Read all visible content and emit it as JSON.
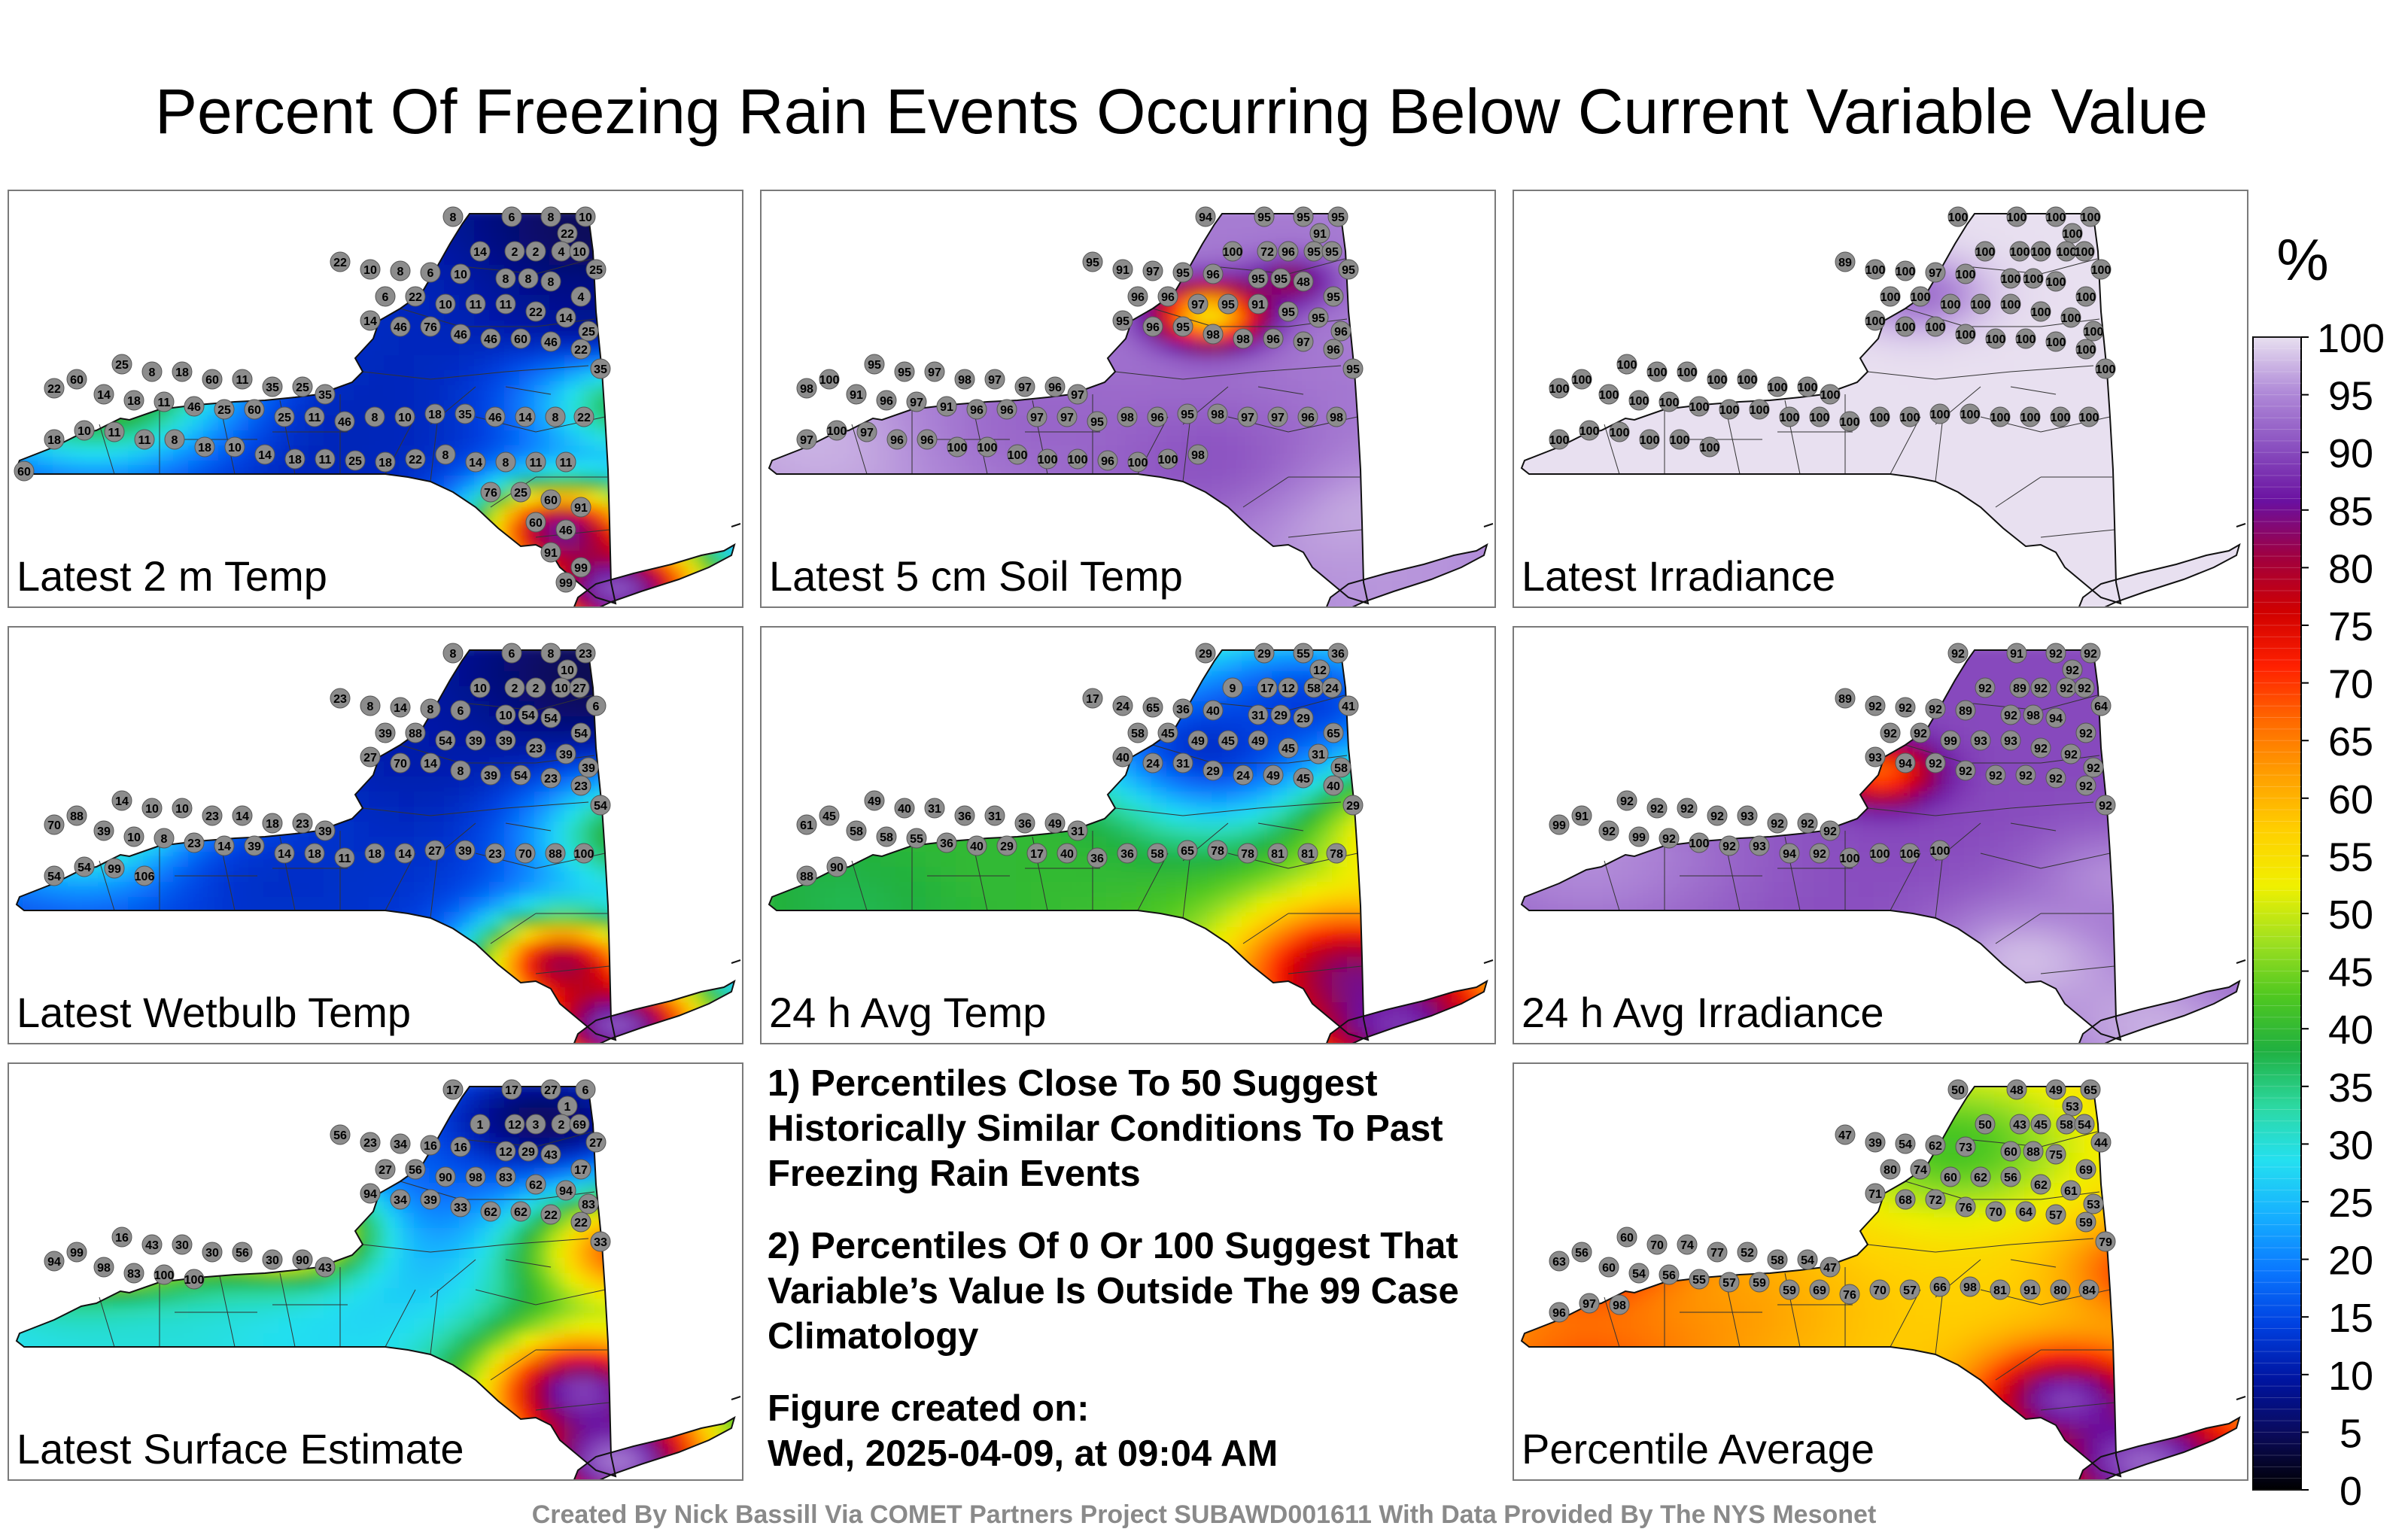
{
  "title": "Percent Of Freezing Rain Events Occurring Below Current Variable Value",
  "panels": [
    {
      "label": "Latest 2 m Temp",
      "field": {
        "base": 12,
        "blobs": [
          [
            0.77,
            0.14,
            0.16,
            2
          ],
          [
            0.5,
            0.3,
            0.18,
            12
          ],
          [
            0.32,
            0.55,
            0.14,
            10
          ],
          [
            0.12,
            0.5,
            0.12,
            45
          ],
          [
            0.18,
            0.34,
            0.1,
            50
          ],
          [
            0.75,
            0.81,
            0.08,
            90
          ],
          [
            0.86,
            0.5,
            0.1,
            45
          ],
          [
            0.83,
            0.96,
            0.1,
            99
          ],
          [
            0.8,
            0.3,
            0.09,
            8
          ]
        ]
      },
      "stations": [
        8,
        6,
        8,
        10,
        22,
        14,
        2,
        2,
        4,
        10,
        25,
        22,
        10,
        8,
        6,
        10,
        8,
        8,
        8,
        4,
        6,
        22,
        10,
        11,
        11,
        22,
        14,
        25,
        14,
        46,
        76,
        46,
        46,
        60,
        46,
        22,
        35,
        25,
        8,
        18,
        60,
        11,
        35,
        25,
        35,
        60,
        22,
        14,
        18,
        11,
        46,
        25,
        60,
        25,
        11,
        46,
        8,
        10,
        18,
        35,
        46,
        14,
        8,
        22,
        18,
        10,
        11,
        11,
        8,
        18,
        10,
        14,
        18,
        11,
        25,
        18,
        22,
        8,
        14,
        8,
        11,
        11,
        60,
        76,
        25,
        60,
        91,
        60,
        46,
        91,
        99,
        99
      ]
    },
    {
      "label": "Latest 5 cm Soil Temp",
      "field": {
        "base": 94,
        "blobs": [
          [
            0.61,
            0.3,
            0.05,
            48
          ],
          [
            0.72,
            0.22,
            0.04,
            80
          ],
          [
            0.1,
            0.6,
            0.15,
            98
          ],
          [
            0.8,
            0.78,
            0.1,
            99
          ],
          [
            0.6,
            0.65,
            0.12,
            90
          ],
          [
            0.38,
            0.55,
            0.12,
            92
          ],
          [
            0.86,
            0.96,
            0.15,
            96
          ]
        ]
      },
      "stations": [
        94,
        95,
        95,
        95,
        91,
        100,
        72,
        96,
        95,
        95,
        95,
        95,
        91,
        97,
        95,
        96,
        95,
        95,
        48,
        95,
        96,
        96,
        97,
        95,
        91,
        95,
        95,
        96,
        95,
        96,
        95,
        98,
        98,
        96,
        97,
        96,
        95,
        95,
        95,
        97,
        98,
        97,
        97,
        96,
        97,
        100,
        98,
        91,
        96,
        97,
        91,
        96,
        96,
        97,
        97,
        95,
        98,
        96,
        95,
        98,
        97,
        97,
        96,
        98,
        97,
        100,
        97,
        96,
        96,
        100,
        100,
        100,
        100,
        100,
        96,
        100,
        100,
        98
      ]
    },
    {
      "label": "Latest Irradiance",
      "field": {
        "base": 100,
        "blobs": [
          [
            0.55,
            0.25,
            0.06,
            92
          ]
        ]
      },
      "stations": [
        100,
        100,
        100,
        100,
        100,
        100,
        100,
        100,
        100,
        100,
        100,
        89,
        100,
        100,
        97,
        100,
        100,
        100,
        100,
        100,
        100,
        100,
        100,
        100,
        100,
        100,
        100,
        100,
        100,
        100,
        100,
        100,
        100,
        100,
        100,
        100,
        100,
        100,
        100,
        100,
        100,
        100,
        100,
        100,
        100,
        100,
        100,
        100,
        100,
        100,
        100,
        100,
        100,
        100,
        100,
        100,
        100,
        100,
        100,
        100,
        100,
        100,
        100,
        100,
        100,
        100,
        100,
        100,
        100,
        100
      ]
    },
    {
      "label": "Latest Wetbulb Temp",
      "field": {
        "base": 14,
        "blobs": [
          [
            0.77,
            0.14,
            0.16,
            2
          ],
          [
            0.5,
            0.3,
            0.18,
            10
          ],
          [
            0.15,
            0.45,
            0.12,
            50
          ],
          [
            0.75,
            0.8,
            0.08,
            85
          ],
          [
            0.86,
            0.5,
            0.1,
            45
          ],
          [
            0.83,
            0.96,
            0.1,
            99
          ],
          [
            0.35,
            0.6,
            0.14,
            12
          ]
        ]
      },
      "stations": [
        8,
        6,
        8,
        23,
        10,
        10,
        2,
        2,
        10,
        27,
        6,
        23,
        8,
        14,
        8,
        6,
        10,
        54,
        54,
        54,
        39,
        88,
        54,
        39,
        39,
        23,
        39,
        39,
        27,
        70,
        14,
        8,
        39,
        54,
        23,
        23,
        54,
        14,
        10,
        10,
        23,
        14,
        18,
        23,
        39,
        88,
        70,
        39,
        10,
        8,
        23,
        14,
        39,
        14,
        18,
        11,
        18,
        14,
        27,
        39,
        23,
        70,
        88,
        100,
        54,
        54,
        99,
        106
      ]
    },
    {
      "label": "24 h Avg Temp",
      "field": {
        "base": 42,
        "blobs": [
          [
            0.6,
            0.3,
            0.14,
            8
          ],
          [
            0.75,
            0.18,
            0.12,
            12
          ],
          [
            0.8,
            0.82,
            0.12,
            85
          ],
          [
            0.9,
            0.5,
            0.1,
            62
          ],
          [
            0.15,
            0.65,
            0.14,
            36
          ],
          [
            0.35,
            0.55,
            0.14,
            40
          ],
          [
            0.87,
            0.96,
            0.1,
            92
          ]
        ]
      },
      "stations": [
        29,
        29,
        55,
        36,
        12,
        9,
        17,
        12,
        58,
        24,
        41,
        17,
        24,
        65,
        36,
        40,
        31,
        29,
        29,
        65,
        58,
        45,
        49,
        45,
        49,
        45,
        31,
        58,
        40,
        24,
        31,
        29,
        24,
        49,
        45,
        40,
        29,
        49,
        40,
        31,
        36,
        31,
        36,
        49,
        31,
        45,
        61,
        58,
        58,
        55,
        36,
        40,
        29,
        17,
        40,
        36,
        36,
        58,
        65,
        78,
        78,
        81,
        81,
        78,
        88,
        90
      ]
    },
    {
      "label": "24 h Avg Irradiance",
      "field": {
        "base": 90,
        "blobs": [
          [
            0.5,
            0.35,
            0.05,
            64
          ],
          [
            0.7,
            0.8,
            0.1,
            99
          ],
          [
            0.1,
            0.55,
            0.15,
            96
          ],
          [
            0.87,
            0.96,
            0.12,
            98
          ],
          [
            0.82,
            0.6,
            0.08,
            96
          ]
        ]
      },
      "stations": [
        92,
        91,
        92,
        92,
        92,
        92,
        89,
        92,
        92,
        92,
        64,
        89,
        92,
        92,
        92,
        89,
        92,
        98,
        94,
        92,
        92,
        92,
        99,
        93,
        93,
        92,
        92,
        92,
        93,
        94,
        92,
        92,
        92,
        92,
        92,
        92,
        92,
        92,
        92,
        92,
        92,
        93,
        92,
        92,
        92,
        91,
        99,
        92,
        99,
        92,
        100,
        92,
        93,
        94,
        92,
        100,
        100,
        106,
        100
      ]
    },
    {
      "label": "Latest Surface Estimate",
      "field": {
        "base": 28,
        "blobs": [
          [
            0.72,
            0.15,
            0.13,
            1
          ],
          [
            0.5,
            0.32,
            0.14,
            15
          ],
          [
            0.14,
            0.4,
            0.1,
            90
          ],
          [
            0.38,
            0.4,
            0.08,
            75
          ],
          [
            0.85,
            0.45,
            0.1,
            75
          ],
          [
            0.78,
            0.78,
            0.1,
            94
          ],
          [
            0.83,
            0.96,
            0.1,
            100
          ],
          [
            0.2,
            0.7,
            0.12,
            30
          ]
        ]
      },
      "stations": [
        17,
        17,
        27,
        6,
        1,
        1,
        12,
        3,
        2,
        69,
        27,
        56,
        23,
        34,
        16,
        16,
        12,
        29,
        43,
        17,
        27,
        56,
        90,
        98,
        83,
        62,
        94,
        83,
        94,
        34,
        39,
        33,
        62,
        62,
        22,
        22,
        33,
        16,
        43,
        30,
        30,
        56,
        30,
        90,
        43,
        99,
        94,
        98,
        83,
        100,
        100
      ]
    },
    {
      "label": "Percentile Average",
      "field": {
        "base": 57,
        "blobs": [
          [
            0.6,
            0.2,
            0.12,
            40
          ],
          [
            0.12,
            0.45,
            0.1,
            85
          ],
          [
            0.75,
            0.8,
            0.08,
            92
          ],
          [
            0.88,
            0.5,
            0.08,
            75
          ],
          [
            0.3,
            0.6,
            0.12,
            62
          ],
          [
            0.1,
            0.75,
            0.12,
            70
          ],
          [
            0.86,
            0.96,
            0.1,
            96
          ]
        ]
      },
      "stations": [
        50,
        48,
        49,
        65,
        53,
        50,
        43,
        45,
        58,
        54,
        44,
        47,
        39,
        54,
        62,
        73,
        60,
        88,
        75,
        69,
        80,
        74,
        60,
        62,
        56,
        62,
        61,
        53,
        71,
        68,
        72,
        76,
        70,
        64,
        57,
        59,
        79,
        60,
        70,
        74,
        77,
        52,
        58,
        54,
        47,
        56,
        63,
        60,
        54,
        56,
        55,
        57,
        59,
        59,
        69,
        76,
        70,
        57,
        66,
        98,
        81,
        91,
        80,
        84,
        96,
        97,
        98
      ]
    }
  ],
  "notes": [
    "1) Percentiles Close To 50 Suggest Historically Similar Conditions To Past Freezing Rain Events",
    "2) Percentiles Of 0 Or 100 Suggest That Variable’s Value Is Outside The 99 Case Climatology",
    "Figure created on:",
    "Wed, 2025-04-09, at 09:04 AM"
  ],
  "colorbar": {
    "unit": "%",
    "ticks": [
      "100",
      "95",
      "90",
      "85",
      "80",
      "75",
      "70",
      "65",
      "60",
      "55",
      "50",
      "45",
      "40",
      "35",
      "30",
      "25",
      "20",
      "15",
      "10",
      "5",
      "0"
    ],
    "colors": [
      "#000000",
      "#0a0a5a",
      "#0014a0",
      "#0040e0",
      "#0a78ff",
      "#16b0ff",
      "#24e0f0",
      "#2cd8a0",
      "#20b040",
      "#50c820",
      "#a0e020",
      "#f0f000",
      "#ffd000",
      "#ffa000",
      "#ff6a00",
      "#ff2000",
      "#d00000",
      "#a00040",
      "#6a10a0",
      "#8a50c0",
      "#b08ad8",
      "#e8e0f0"
    ]
  },
  "footer": "Created By Nick Bassill Via COMET Partners Project SUBAWD001611 With Data Provided By The NYS Mesonet"
}
